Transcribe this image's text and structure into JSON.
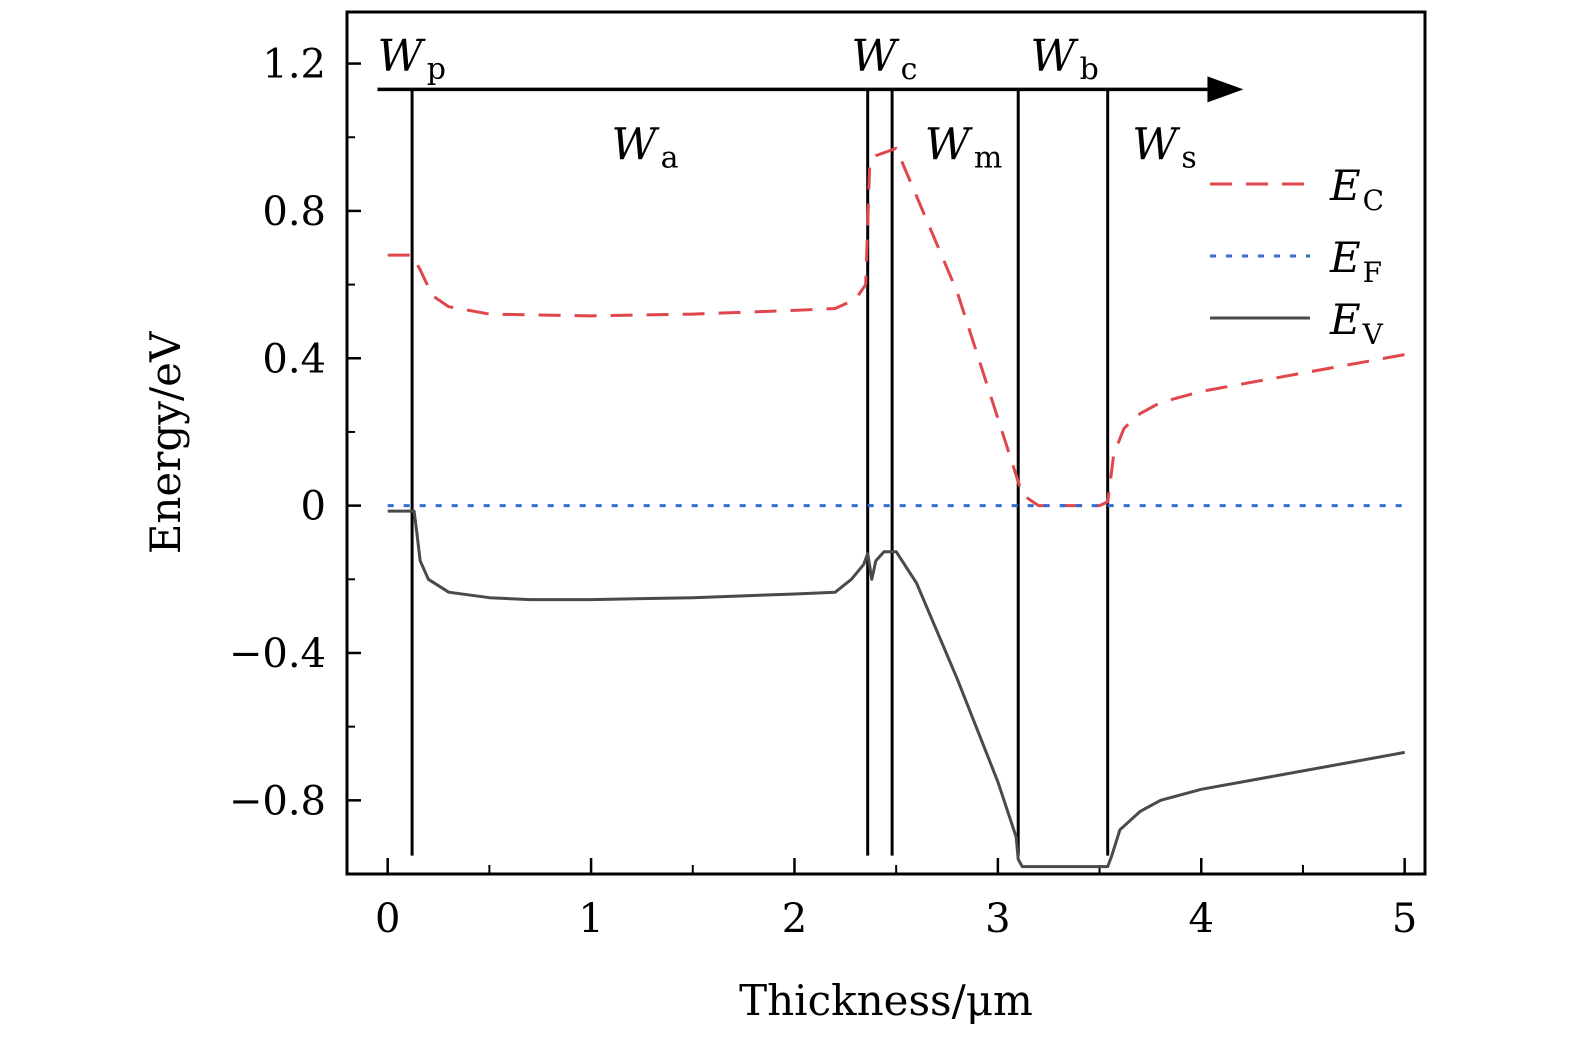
{
  "chart_data": {
    "type": "line",
    "xlabel": "Thickness/μm",
    "ylabel": "Energy/eV",
    "xlim": [
      -0.2,
      5.1
    ],
    "ylim": [
      -1.0,
      1.34
    ],
    "x_ticks": [
      0,
      1,
      2,
      3,
      4,
      5
    ],
    "x_tick_labels": [
      "0",
      "1",
      "2",
      "3",
      "4",
      "5"
    ],
    "x_minor_ticks": [
      0.5,
      1.5,
      2.5,
      3.5,
      4.5
    ],
    "y_ticks": [
      1.2,
      0.8,
      0.4,
      0,
      -0.4,
      -0.8
    ],
    "y_tick_labels": [
      "1.2",
      "0.8",
      "0.4",
      "0",
      "−0.4",
      "−0.8"
    ],
    "y_minor_ticks": [
      1.0,
      0.6,
      0.2,
      -0.2,
      -0.6
    ],
    "arrow": {
      "y": 1.13,
      "x_start": -0.05,
      "x_end": 4.05
    },
    "boundaries": [
      {
        "x": 0.12,
        "y_top": 1.13,
        "y_bottom": -0.95
      },
      {
        "x": 2.36,
        "y_top": 1.13,
        "y_bottom": -0.95
      },
      {
        "x": 2.48,
        "y_top": 1.13,
        "y_bottom": -0.95
      },
      {
        "x": 3.1,
        "y_top": 1.13,
        "y_bottom": -0.95
      },
      {
        "x": 3.54,
        "y_top": 1.13,
        "y_bottom": -0.95
      }
    ],
    "region_labels": [
      {
        "main": "W",
        "sub": "p",
        "x": -0.05,
        "y": 1.22
      },
      {
        "main": "W",
        "sub": "a",
        "x": 1.1,
        "y": 0.98
      },
      {
        "main": "W",
        "sub": "c",
        "x": 2.28,
        "y": 1.22
      },
      {
        "main": "W",
        "sub": "m",
        "x": 2.64,
        "y": 0.98
      },
      {
        "main": "W",
        "sub": "b",
        "x": 3.16,
        "y": 1.22
      },
      {
        "main": "W",
        "sub": "s",
        "x": 3.66,
        "y": 0.98
      }
    ],
    "legend_position": "top-right",
    "series": [
      {
        "name": "E",
        "sub": "C",
        "style": "dashed",
        "color": "#e0474c",
        "x": [
          0.0,
          0.12,
          0.16,
          0.22,
          0.3,
          0.5,
          1.0,
          1.5,
          2.0,
          2.2,
          2.3,
          2.35,
          2.37,
          2.4,
          2.5,
          2.8,
          3.08,
          3.12,
          3.2,
          3.5,
          3.54,
          3.57,
          3.62,
          3.7,
          3.8,
          4.0,
          4.5,
          5.0
        ],
        "y": [
          0.68,
          0.68,
          0.64,
          0.57,
          0.54,
          0.52,
          0.515,
          0.52,
          0.53,
          0.535,
          0.56,
          0.6,
          0.93,
          0.95,
          0.97,
          0.58,
          0.1,
          0.03,
          0.0,
          0.0,
          0.01,
          0.14,
          0.21,
          0.25,
          0.28,
          0.31,
          0.36,
          0.41
        ]
      },
      {
        "name": "E",
        "sub": "F",
        "style": "dotted",
        "color": "#2e6fcf",
        "x": [
          0.0,
          5.0
        ],
        "y": [
          0.0,
          0.0
        ]
      },
      {
        "name": "E",
        "sub": "V",
        "style": "solid",
        "color": "#4a4a4a",
        "x": [
          0.0,
          0.13,
          0.14,
          0.16,
          0.2,
          0.3,
          0.5,
          0.7,
          1.0,
          1.5,
          2.0,
          2.2,
          2.28,
          2.34,
          2.36,
          2.38,
          2.4,
          2.44,
          2.5,
          2.6,
          2.8,
          3.0,
          3.06,
          3.09,
          3.1,
          3.12,
          3.2,
          3.5,
          3.54,
          3.56,
          3.6,
          3.7,
          3.8,
          4.0,
          4.5,
          5.0
        ],
        "y": [
          -0.015,
          -0.015,
          -0.06,
          -0.15,
          -0.2,
          -0.235,
          -0.25,
          -0.255,
          -0.255,
          -0.25,
          -0.24,
          -0.235,
          -0.2,
          -0.16,
          -0.13,
          -0.2,
          -0.15,
          -0.125,
          -0.125,
          -0.21,
          -0.47,
          -0.75,
          -0.85,
          -0.9,
          -0.96,
          -0.98,
          -0.98,
          -0.98,
          -0.98,
          -0.95,
          -0.88,
          -0.83,
          -0.8,
          -0.77,
          -0.72,
          -0.67
        ]
      }
    ]
  }
}
